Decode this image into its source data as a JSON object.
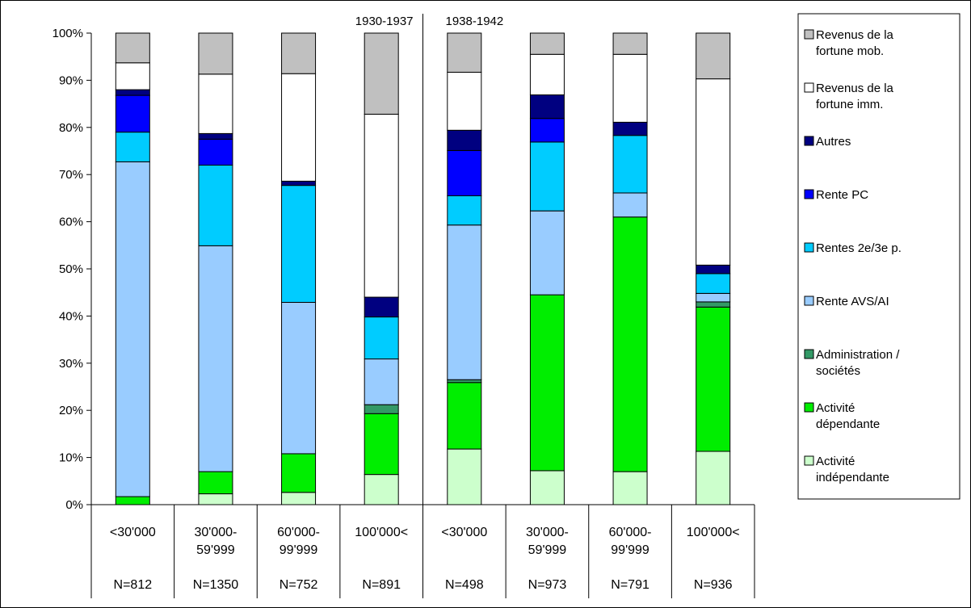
{
  "chart_data": {
    "type": "bar",
    "stacked": true,
    "percent": true,
    "groups": [
      {
        "label": "1930-1937",
        "categories": [
          0,
          1,
          2,
          3
        ]
      },
      {
        "label": "1938-1942",
        "categories": [
          4,
          5,
          6,
          7
        ]
      }
    ],
    "categories": [
      {
        "lines": [
          "<30'000"
        ],
        "n": "N=812"
      },
      {
        "lines": [
          "30'000-",
          "59'999"
        ],
        "n": "N=1350"
      },
      {
        "lines": [
          "60'000-",
          "99'999"
        ],
        "n": "N=752"
      },
      {
        "lines": [
          "100'000<"
        ],
        "n": "N=891"
      },
      {
        "lines": [
          "<30'000"
        ],
        "n": "N=498"
      },
      {
        "lines": [
          "30'000-",
          "59'999"
        ],
        "n": "N=973"
      },
      {
        "lines": [
          "60'000-",
          "99'999"
        ],
        "n": "N=791"
      },
      {
        "lines": [
          "100'000<"
        ],
        "n": "N=936"
      }
    ],
    "series": [
      {
        "name": "Activité indépendante",
        "legend_lines": [
          "Activité",
          "indépendante"
        ],
        "color": "#ccffcc",
        "values": [
          0,
          2.3,
          2.6,
          6.4,
          11.8,
          7.2,
          7.0,
          11.3
        ]
      },
      {
        "name": "Activité dépendante",
        "legend_lines": [
          "Activité",
          "dépendante"
        ],
        "color": "#00ee00",
        "values": [
          1.7,
          4.7,
          8.2,
          12.9,
          14.1,
          37.3,
          54.0,
          30.6
        ]
      },
      {
        "name": "Administration / sociétés",
        "legend_lines": [
          "Administration /",
          "sociétés"
        ],
        "color": "#339966",
        "values": [
          0,
          0,
          0,
          1.9,
          0.6,
          0,
          0,
          1.1
        ]
      },
      {
        "name": "Rente AVS/AI",
        "legend_lines": [
          "Rente AVS/AI"
        ],
        "color": "#99ccff",
        "values": [
          71.0,
          47.9,
          32.1,
          9.7,
          32.8,
          17.8,
          5.1,
          1.8
        ]
      },
      {
        "name": "Rentes 2e/3e p.",
        "legend_lines": [
          "Rentes 2e/3e p."
        ],
        "color": "#00ccff",
        "values": [
          6.3,
          17.1,
          24.8,
          8.9,
          6.2,
          14.6,
          12.2,
          4.2
        ]
      },
      {
        "name": "Rente PC",
        "legend_lines": [
          "Rente PC"
        ],
        "color": "#0000ff",
        "values": [
          7.8,
          5.5,
          0,
          0,
          9.6,
          5.0,
          0,
          0
        ]
      },
      {
        "name": "Autres",
        "legend_lines": [
          "Autres"
        ],
        "color": "#000080",
        "values": [
          1.2,
          1.2,
          0.9,
          4.2,
          4.3,
          5.0,
          2.8,
          1.8
        ]
      },
      {
        "name": "Revenus de la fortune imm.",
        "legend_lines": [
          "Revenus de la",
          "fortune imm."
        ],
        "color": "#ffffff",
        "values": [
          5.7,
          12.6,
          22.8,
          38.8,
          12.3,
          8.6,
          14.4,
          39.5
        ]
      },
      {
        "name": "Revenus de la fortune mob.",
        "legend_lines": [
          "Revenus de la",
          "fortune mob."
        ],
        "color": "#c0c0c0",
        "values": [
          6.3,
          8.7,
          8.6,
          17.2,
          8.3,
          4.5,
          4.5,
          9.7
        ]
      }
    ],
    "ylim": [
      0,
      100
    ],
    "yticks": [
      "0%",
      "10%",
      "20%",
      "30%",
      "40%",
      "50%",
      "60%",
      "70%",
      "80%",
      "90%",
      "100%"
    ],
    "legend_position": "right",
    "grid": false
  }
}
